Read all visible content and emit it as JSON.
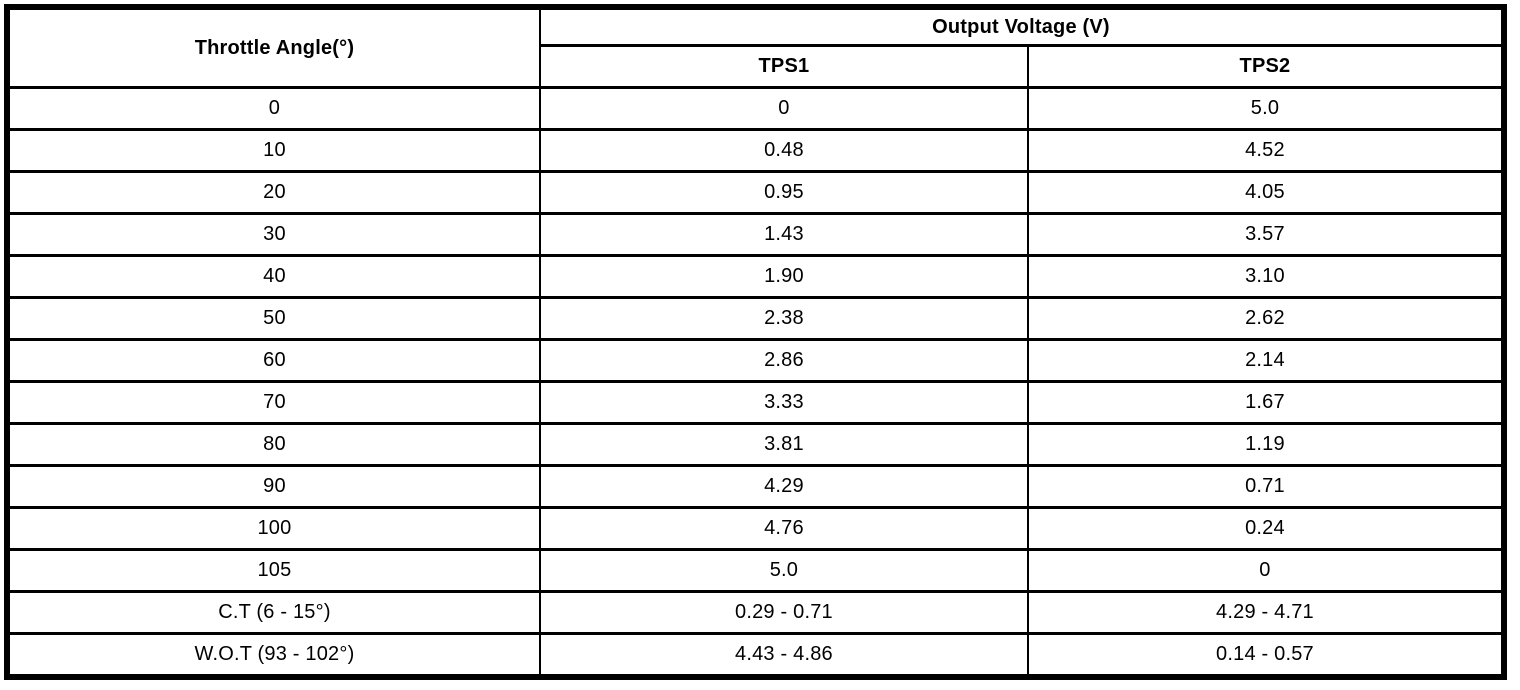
{
  "table": {
    "angle_header": "Throttle Angle(°)",
    "voltage_group_header": "Output Voltage (V)",
    "tps1_header": "TPS1",
    "tps2_header": "TPS2",
    "rows": [
      {
        "angle": "0",
        "tps1": "0",
        "tps2": "5.0"
      },
      {
        "angle": "10",
        "tps1": "0.48",
        "tps2": "4.52"
      },
      {
        "angle": "20",
        "tps1": "0.95",
        "tps2": "4.05"
      },
      {
        "angle": "30",
        "tps1": "1.43",
        "tps2": "3.57"
      },
      {
        "angle": "40",
        "tps1": "1.90",
        "tps2": "3.10"
      },
      {
        "angle": "50",
        "tps1": "2.38",
        "tps2": "2.62"
      },
      {
        "angle": "60",
        "tps1": "2.86",
        "tps2": "2.14"
      },
      {
        "angle": "70",
        "tps1": "3.33",
        "tps2": "1.67"
      },
      {
        "angle": "80",
        "tps1": "3.81",
        "tps2": "1.19"
      },
      {
        "angle": "90",
        "tps1": "4.29",
        "tps2": "0.71"
      },
      {
        "angle": "100",
        "tps1": "4.76",
        "tps2": "0.24"
      },
      {
        "angle": "105",
        "tps1": "5.0",
        "tps2": "0"
      },
      {
        "angle": "C.T (6 - 15°)",
        "tps1": "0.29 - 0.71",
        "tps2": "4.29 - 4.71"
      },
      {
        "angle": "W.O.T (93 - 102°)",
        "tps1": "4.43 - 4.86",
        "tps2": "0.14 - 0.57"
      }
    ]
  },
  "colors": {
    "border": "#000000",
    "background": "#ffffff",
    "text": "#000000"
  },
  "chart_data": {
    "type": "table",
    "columns": [
      "Throttle Angle(°)",
      "Output Voltage (V) TPS1",
      "Output Voltage (V) TPS2"
    ],
    "x": [
      0,
      10,
      20,
      30,
      40,
      50,
      60,
      70,
      80,
      90,
      100,
      105
    ],
    "series": [
      {
        "name": "TPS1",
        "values": [
          0,
          0.48,
          0.95,
          1.43,
          1.9,
          2.38,
          2.86,
          3.33,
          3.81,
          4.29,
          4.76,
          5.0
        ]
      },
      {
        "name": "TPS2",
        "values": [
          5.0,
          4.52,
          4.05,
          3.57,
          3.1,
          2.62,
          2.14,
          1.67,
          1.19,
          0.71,
          0.24,
          0
        ]
      }
    ],
    "range_rows": [
      {
        "label": "C.T (6 - 15°)",
        "TPS1": "0.29 - 0.71",
        "TPS2": "4.29 - 4.71"
      },
      {
        "label": "W.O.T (93 - 102°)",
        "TPS1": "4.43 - 4.86",
        "TPS2": "0.14 - 0.57"
      }
    ]
  }
}
